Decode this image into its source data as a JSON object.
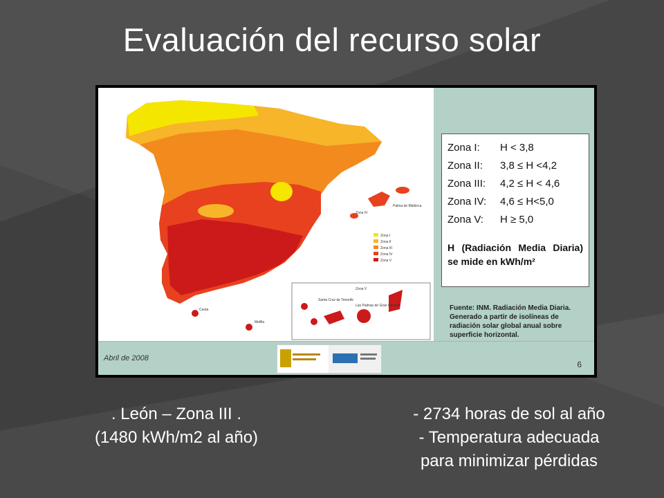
{
  "slide": {
    "title": "Evaluación del recurso solar"
  },
  "map": {
    "zones_legend": [
      {
        "zone": "Zona I:",
        "range": "H < 3,8"
      },
      {
        "zone": "Zona II:",
        "range": "3,8 ≤ H <4,2"
      },
      {
        "zone": "Zona III:",
        "range": "4,2 ≤ H < 4,6"
      },
      {
        "zone": "Zona IV:",
        "range": "4,6 ≤ H<5,0"
      },
      {
        "zone": "Zona V:",
        "range": "H ≥ 5,0"
      }
    ],
    "legend_note": "H (Radiación Media Diaria) se mide en kWh/m²",
    "source_note": "Fuente: INM. Radiación Media Diaria. Generado a partir de isolíneas de radiación solar global anual sobre superficie horizontal.",
    "date": "Abril de 2008",
    "page_number": "6",
    "zone_colors": {
      "zona_i": "#f5e600",
      "zona_ii": "#f7b52a",
      "zona_iii": "#f28a1e",
      "zona_iv": "#e8411f",
      "zona_v": "#cc1a1a"
    },
    "mini_legend": [
      "Zona I",
      "Zona II",
      "Zona III",
      "Zona IV",
      "Zona V"
    ],
    "place_labels": [
      "Palma de Mallorca",
      "Santa Cruz de Tenerife",
      "Las Palmas de Gran Canaria",
      "Ceuta",
      "Melilla",
      "Zona V",
      "Zona IV"
    ]
  },
  "captions": {
    "left_line1": ". León – Zona III .",
    "left_line2": "(1480 kWh/m2 al año)",
    "right_line1": "- 2734 horas de sol al año",
    "right_line2": "- Temperatura adecuada",
    "right_line3": "para minimizar pérdidas"
  }
}
